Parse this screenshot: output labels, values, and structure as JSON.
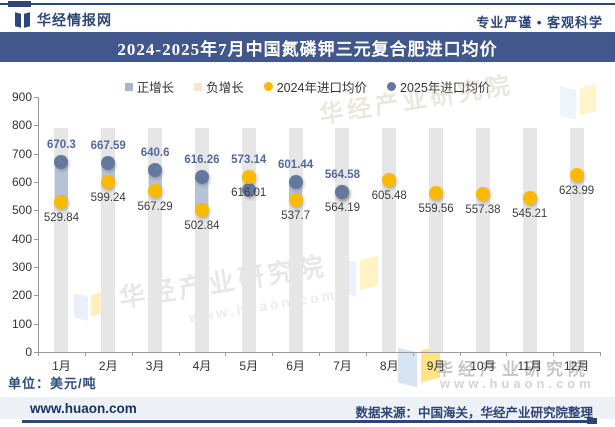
{
  "header": {
    "brand": "华经情报网",
    "slogan": "专业严谨 • 客观科学"
  },
  "title": "2024-2025年7月中国氮磷钾三元复合肥进口均价",
  "legend": [
    {
      "label": "正增长",
      "marker": "square",
      "color": "#a8b4c9"
    },
    {
      "label": "负增长",
      "marker": "square",
      "color": "#f3e9c5"
    },
    {
      "label": "2024年进口均价",
      "marker": "circle",
      "color": "#fbba00"
    },
    {
      "label": "2025年进口均价",
      "marker": "circle",
      "color": "#64779e"
    }
  ],
  "chart_data": {
    "type": "dumbbell",
    "title": "2024-2025年7月中国氮磷钾三元复合肥进口均价",
    "categories": [
      "1月",
      "2月",
      "3月",
      "4月",
      "5月",
      "6月",
      "7月",
      "8月",
      "9月",
      "10月",
      "11月",
      "12月"
    ],
    "series": [
      {
        "name": "2024年进口均价",
        "color": "#fbba00",
        "values": [
          529.84,
          599.24,
          567.29,
          502.84,
          616.01,
          537.7,
          564.19,
          605.48,
          559.56,
          557.38,
          545.21,
          623.99
        ]
      },
      {
        "name": "2025年进口均价",
        "color": "#64779e",
        "values": [
          670.3,
          667.59,
          640.6,
          616.26,
          573.14,
          601.44,
          564.58,
          null,
          null,
          null,
          null,
          null
        ]
      }
    ],
    "ylim": [
      0,
      900
    ],
    "yticks": [
      900,
      800,
      700,
      600,
      500,
      400,
      300,
      200,
      100,
      0
    ],
    "grid": false,
    "legend_position": "top",
    "unit": "美元/吨",
    "colors": {
      "positive_band": "#b6c3d7",
      "negative_band": "#f3e9c5",
      "column_bg": "#e6e6e6",
      "label_2025": "#54699b",
      "label_2024": "#3c3c3c",
      "axis": "#9a9a9a"
    }
  },
  "unit_label": "单位：美元/吨",
  "footer": {
    "site": "www.huaon.com",
    "source": "数据来源：中国海关，华经产业研究院整理"
  },
  "watermark": {
    "org": "华经产业研究院",
    "url": "www.huaon.com",
    "url_spaced": "www.huaon.com"
  }
}
